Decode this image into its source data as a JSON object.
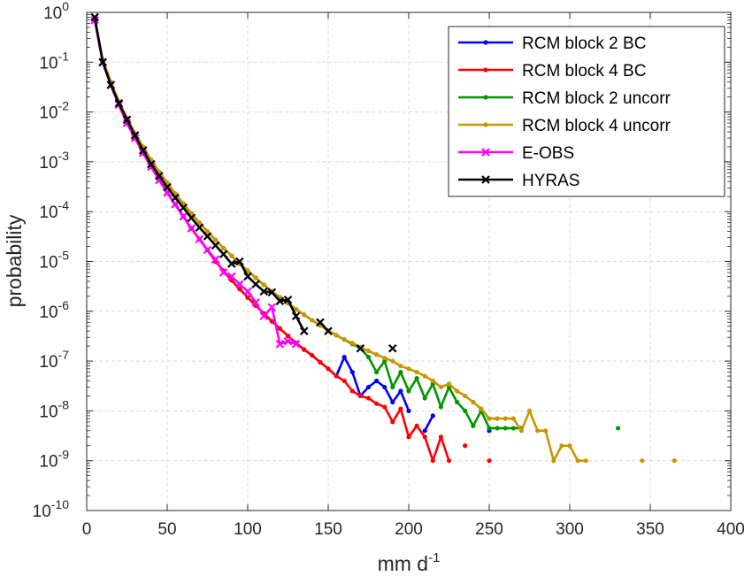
{
  "chart_data": {
    "type": "line",
    "title": "",
    "xlabel": "mm d",
    "xlabel_sup": "-1",
    "ylabel": "probability",
    "xlim": [
      0,
      400
    ],
    "ylim": [
      1e-10,
      1
    ],
    "yscale": "log",
    "grid": true,
    "legend_position": "top-right",
    "x_ticks": [
      "0",
      "50",
      "100",
      "150",
      "200",
      "250",
      "300",
      "350",
      "400"
    ],
    "y_ticks": [
      {
        "base": "10",
        "exp": "0"
      },
      {
        "base": "10",
        "exp": "-1"
      },
      {
        "base": "10",
        "exp": "-2"
      },
      {
        "base": "10",
        "exp": "-3"
      },
      {
        "base": "10",
        "exp": "-4"
      },
      {
        "base": "10",
        "exp": "-5"
      },
      {
        "base": "10",
        "exp": "-6"
      },
      {
        "base": "10",
        "exp": "-7"
      },
      {
        "base": "10",
        "exp": "-8"
      },
      {
        "base": "10",
        "exp": "-9"
      },
      {
        "base": "10",
        "exp": "-10"
      }
    ],
    "series": [
      {
        "name": "RCM block 2 BC",
        "color": "#0000ff",
        "marker": "dot",
        "points": [
          [
            5,
            0.7
          ],
          [
            10,
            0.1
          ],
          [
            15,
            0.035
          ],
          [
            20,
            0.014
          ],
          [
            25,
            0.006
          ],
          [
            30,
            0.003
          ],
          [
            35,
            0.0015
          ],
          [
            40,
            0.0008
          ],
          [
            45,
            0.00043
          ],
          [
            50,
            0.00024
          ],
          [
            55,
            0.00014
          ],
          [
            60,
            8e-05
          ],
          [
            65,
            4.6e-05
          ],
          [
            70,
            2.8e-05
          ],
          [
            75,
            1.7e-05
          ],
          [
            80,
            1e-05
          ],
          [
            85,
            6.5e-06
          ],
          [
            90,
            4.2e-06
          ],
          [
            95,
            2.8e-06
          ],
          [
            100,
            1.9e-06
          ],
          [
            105,
            1.3e-06
          ],
          [
            110,
            9e-07
          ],
          [
            115,
            6.3e-07
          ],
          [
            120,
            4.5e-07
          ],
          [
            125,
            3.2e-07
          ],
          [
            130,
            2.3e-07
          ],
          [
            135,
            1.7e-07
          ],
          [
            140,
            1.3e-07
          ],
          [
            145,
            9.5e-08
          ],
          [
            150,
            7e-08
          ],
          [
            155,
            5e-08
          ],
          [
            160,
            1.2e-07
          ],
          [
            165,
            6e-08
          ],
          [
            170,
            2e-08
          ],
          [
            175,
            3e-08
          ],
          [
            180,
            4e-08
          ],
          [
            185,
            3e-08
          ],
          [
            190,
            1.5e-08
          ],
          [
            195,
            2.5e-08
          ],
          [
            200,
            1e-08
          ],
          null,
          [
            210,
            4e-09
          ],
          [
            215,
            8e-09
          ],
          null,
          [
            250,
            4e-09
          ]
        ]
      },
      {
        "name": "RCM block 4 BC",
        "color": "#ff0000",
        "marker": "dot",
        "points": [
          [
            5,
            0.7
          ],
          [
            10,
            0.1
          ],
          [
            15,
            0.035
          ],
          [
            20,
            0.014
          ],
          [
            25,
            0.006
          ],
          [
            30,
            0.003
          ],
          [
            35,
            0.0015
          ],
          [
            40,
            0.0008
          ],
          [
            45,
            0.00043
          ],
          [
            50,
            0.00024
          ],
          [
            55,
            0.00014
          ],
          [
            60,
            8e-05
          ],
          [
            65,
            4.6e-05
          ],
          [
            70,
            2.8e-05
          ],
          [
            75,
            1.7e-05
          ],
          [
            80,
            1e-05
          ],
          [
            85,
            6.5e-06
          ],
          [
            90,
            4.2e-06
          ],
          [
            95,
            2.8e-06
          ],
          [
            100,
            1.9e-06
          ],
          [
            105,
            1.3e-06
          ],
          [
            110,
            9e-07
          ],
          [
            115,
            6.3e-07
          ],
          [
            120,
            4.5e-07
          ],
          [
            125,
            3.2e-07
          ],
          [
            130,
            2.3e-07
          ],
          [
            135,
            1.7e-07
          ],
          [
            140,
            1.3e-07
          ],
          [
            145,
            9.5e-08
          ],
          [
            150,
            7e-08
          ],
          [
            155,
            5e-08
          ],
          [
            160,
            4e-08
          ],
          [
            165,
            2.5e-08
          ],
          [
            170,
            2e-08
          ],
          [
            175,
            1.8e-08
          ],
          [
            180,
            1.4e-08
          ],
          [
            185,
            1.2e-08
          ],
          [
            190,
            6e-09
          ],
          [
            195,
            1.1e-08
          ],
          [
            200,
            3e-09
          ],
          [
            205,
            5e-09
          ],
          [
            210,
            3e-09
          ],
          [
            215,
            1e-09
          ],
          [
            220,
            3e-09
          ],
          [
            225,
            1e-09
          ],
          null,
          [
            235,
            2e-09
          ],
          null,
          [
            250,
            1e-09
          ]
        ]
      },
      {
        "name": "RCM block 2 uncorr",
        "color": "#009600",
        "marker": "dot",
        "points": [
          [
            5,
            0.7
          ],
          [
            10,
            0.11
          ],
          [
            15,
            0.04
          ],
          [
            20,
            0.016
          ],
          [
            25,
            0.0075
          ],
          [
            30,
            0.0037
          ],
          [
            35,
            0.002
          ],
          [
            40,
            0.0011
          ],
          [
            45,
            0.00063
          ],
          [
            50,
            0.00038
          ],
          [
            55,
            0.00023
          ],
          [
            60,
            0.000145
          ],
          [
            65,
            9.2e-05
          ],
          [
            70,
            6e-05
          ],
          [
            75,
            4e-05
          ],
          [
            80,
            2.7e-05
          ],
          [
            85,
            1.85e-05
          ],
          [
            90,
            1.3e-05
          ],
          [
            95,
            9e-06
          ],
          [
            100,
            6.5e-06
          ],
          [
            105,
            4.7e-06
          ],
          [
            110,
            3.4e-06
          ],
          [
            115,
            2.5e-06
          ],
          [
            120,
            1.9e-06
          ],
          [
            125,
            1.45e-06
          ],
          [
            130,
            1.1e-06
          ],
          [
            135,
            8.5e-07
          ],
          [
            140,
            6.6e-07
          ],
          [
            145,
            5.2e-07
          ],
          [
            150,
            4.1e-07
          ],
          [
            155,
            3.3e-07
          ],
          [
            160,
            2.7e-07
          ],
          [
            165,
            2.2e-07
          ],
          [
            170,
            1.8e-07
          ],
          [
            175,
            1.2e-07
          ],
          [
            180,
            6e-08
          ],
          [
            185,
            1e-07
          ],
          [
            190,
            3e-08
          ],
          [
            195,
            6e-08
          ],
          [
            200,
            2.5e-08
          ],
          [
            205,
            4.5e-08
          ],
          [
            210,
            1.8e-08
          ],
          [
            215,
            3.5e-08
          ],
          [
            220,
            1.2e-08
          ],
          [
            225,
            3e-08
          ],
          [
            230,
            1.5e-08
          ],
          [
            235,
            1e-08
          ],
          [
            240,
            5e-09
          ],
          [
            245,
            1e-08
          ],
          [
            250,
            4.5e-09
          ],
          [
            255,
            4.5e-09
          ],
          [
            260,
            4.5e-09
          ],
          [
            265,
            4.5e-09
          ],
          [
            270,
            4.5e-09
          ],
          null,
          [
            330,
            4.5e-09
          ]
        ]
      },
      {
        "name": "RCM block 4 uncorr",
        "color": "#c89600",
        "marker": "dot",
        "points": [
          [
            5,
            0.7
          ],
          [
            10,
            0.11
          ],
          [
            15,
            0.04
          ],
          [
            20,
            0.016
          ],
          [
            25,
            0.0075
          ],
          [
            30,
            0.0037
          ],
          [
            35,
            0.002
          ],
          [
            40,
            0.0011
          ],
          [
            45,
            0.00063
          ],
          [
            50,
            0.00038
          ],
          [
            55,
            0.00023
          ],
          [
            60,
            0.000145
          ],
          [
            65,
            9.2e-05
          ],
          [
            70,
            6e-05
          ],
          [
            75,
            4e-05
          ],
          [
            80,
            2.7e-05
          ],
          [
            85,
            1.85e-05
          ],
          [
            90,
            1.3e-05
          ],
          [
            95,
            9e-06
          ],
          [
            100,
            6.5e-06
          ],
          [
            105,
            4.7e-06
          ],
          [
            110,
            3.4e-06
          ],
          [
            115,
            2.5e-06
          ],
          [
            120,
            1.9e-06
          ],
          [
            125,
            1.45e-06
          ],
          [
            130,
            1.1e-06
          ],
          [
            135,
            8.5e-07
          ],
          [
            140,
            6.6e-07
          ],
          [
            145,
            5.2e-07
          ],
          [
            150,
            4.1e-07
          ],
          [
            155,
            3.3e-07
          ],
          [
            160,
            2.7e-07
          ],
          [
            165,
            2.3e-07
          ],
          [
            170,
            1.9e-07
          ],
          [
            175,
            1.6e-07
          ],
          [
            180,
            1.35e-07
          ],
          [
            185,
            1.15e-07
          ],
          [
            190,
            1e-07
          ],
          [
            195,
            8e-08
          ],
          [
            200,
            7e-08
          ],
          [
            205,
            6e-08
          ],
          [
            210,
            5e-08
          ],
          [
            215,
            4e-08
          ],
          [
            220,
            3e-08
          ],
          [
            225,
            3.5e-08
          ],
          [
            230,
            2.5e-08
          ],
          [
            235,
            2e-08
          ],
          [
            240,
            1.5e-08
          ],
          [
            245,
            1.1e-08
          ],
          [
            250,
            7e-09
          ],
          [
            255,
            7e-09
          ],
          [
            260,
            7e-09
          ],
          [
            265,
            7e-09
          ],
          [
            270,
            4e-09
          ],
          [
            275,
            1e-08
          ],
          [
            280,
            4e-09
          ],
          [
            285,
            4e-09
          ],
          [
            290,
            1e-09
          ],
          [
            295,
            2e-09
          ],
          [
            300,
            2e-09
          ],
          [
            305,
            1e-09
          ],
          [
            310,
            1e-09
          ],
          null,
          [
            345,
            1e-09
          ],
          null,
          [
            365,
            1e-09
          ]
        ]
      },
      {
        "name": "E-OBS",
        "color": "#ff00ff",
        "marker": "x",
        "points": [
          [
            5,
            0.7
          ],
          [
            10,
            0.1
          ],
          [
            15,
            0.035
          ],
          [
            20,
            0.014
          ],
          [
            25,
            0.006
          ],
          [
            30,
            0.003
          ],
          [
            35,
            0.0015
          ],
          [
            40,
            0.0008
          ],
          [
            45,
            0.00043
          ],
          [
            50,
            0.00024
          ],
          [
            55,
            0.00014
          ],
          [
            60,
            8e-05
          ],
          [
            65,
            4.6e-05
          ],
          [
            70,
            2.8e-05
          ],
          [
            75,
            1.7e-05
          ],
          [
            80,
            1.1e-05
          ],
          [
            85,
            6e-06
          ],
          [
            90,
            5e-06
          ],
          [
            95,
            3.5e-06
          ],
          [
            100,
            2.5e-06
          ],
          [
            105,
            1.5e-06
          ],
          [
            110,
            8e-07
          ],
          [
            115,
            1.2e-06
          ],
          [
            120,
            2.2e-07
          ],
          [
            125,
            2.5e-07
          ],
          [
            130,
            2.2e-07
          ]
        ]
      },
      {
        "name": "HYRAS",
        "color": "#000000",
        "marker": "x",
        "points": [
          [
            5,
            0.8
          ],
          [
            10,
            0.1
          ],
          [
            15,
            0.035
          ],
          [
            20,
            0.015
          ],
          [
            25,
            0.007
          ],
          [
            30,
            0.0034
          ],
          [
            35,
            0.0017
          ],
          [
            40,
            0.0009
          ],
          [
            45,
            0.00052
          ],
          [
            50,
            0.00031
          ],
          [
            55,
            0.00019
          ],
          [
            60,
            0.00012
          ],
          [
            65,
            7.5e-05
          ],
          [
            70,
            4.8e-05
          ],
          [
            75,
            3.2e-05
          ],
          [
            80,
            2.1e-05
          ],
          [
            85,
            1.4e-05
          ],
          [
            90,
            9e-06
          ],
          [
            95,
            1e-05
          ],
          [
            100,
            5e-06
          ],
          [
            105,
            3.5e-06
          ],
          [
            110,
            2.5e-06
          ],
          [
            115,
            2.4e-06
          ],
          [
            120,
            1.6e-06
          ],
          [
            125,
            1.7e-06
          ],
          [
            130,
            8e-07
          ],
          [
            135,
            4e-07
          ],
          null,
          [
            145,
            6e-07
          ],
          [
            150,
            4e-07
          ],
          null,
          [
            170,
            1.8e-07
          ],
          null,
          [
            190,
            1.8e-07
          ]
        ]
      }
    ]
  }
}
